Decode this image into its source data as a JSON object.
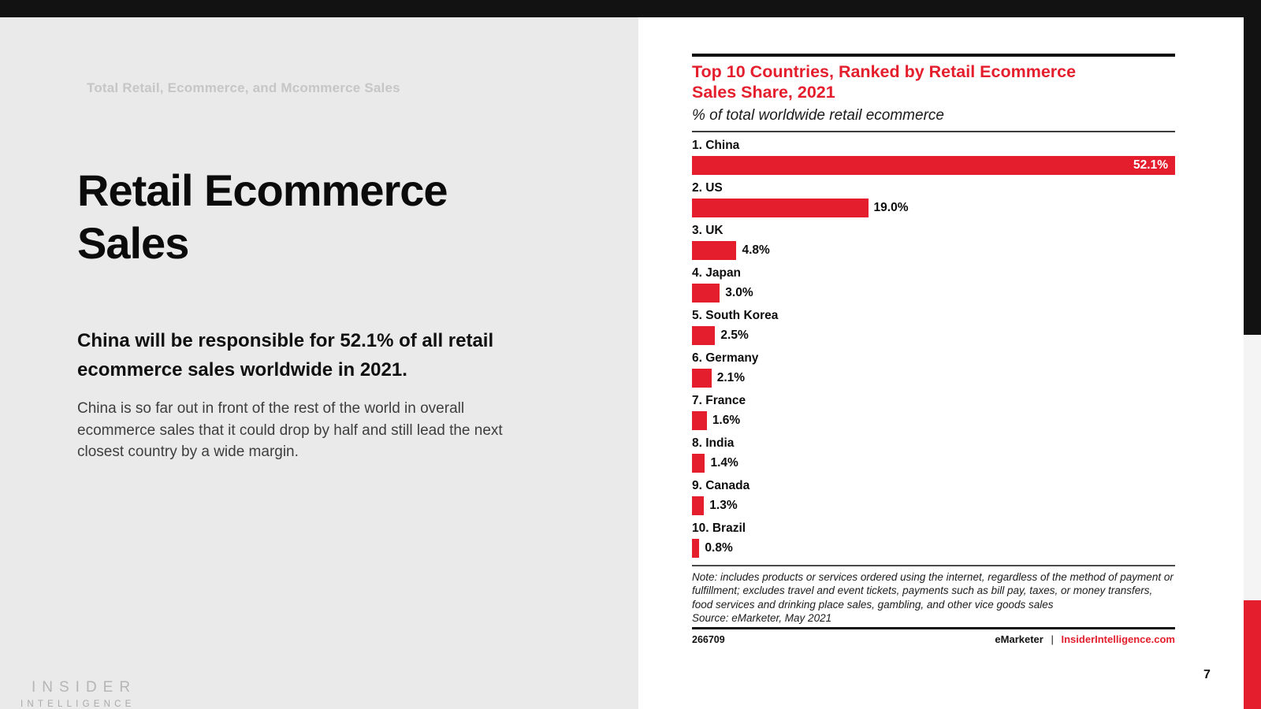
{
  "page": {
    "eyebrow": "Total Retail, Ecommerce, and Mcommerce Sales",
    "title": "Retail Ecommerce Sales",
    "highlight": "China will be responsible for 52.1% of all retail ecommerce sales worldwide in 2021.",
    "body": "China is so far out in front of the rest of the world in overall ecommerce sales that it could drop by half and still lead the next closest country by a wide margin.",
    "page_number": "7",
    "logo_line1": "INSIDER",
    "logo_line2": "INTELLIGENCE"
  },
  "chart": {
    "title_lines": [
      "Top 10 Countries, Ranked by Retail Ecommerce",
      "Sales Share, 2021"
    ],
    "subtitle": "% of total worldwide retail ecommerce",
    "note": "Note: includes products or services ordered using the internet, regardless of the method of payment or fulfillment; excludes travel and event tickets, payments such as bill pay, taxes, or money transfers, food services and drinking place sales, gambling, and other vice goods sales",
    "source": "Source: eMarketer, May 2021",
    "chart_id": "266709",
    "brand": "eMarketer",
    "brand_separator": "|",
    "brand_site": "InsiderIntelligence.com"
  },
  "chart_data": {
    "type": "bar",
    "orientation": "horizontal",
    "title": "Top 10 Countries, Ranked by Retail Ecommerce Sales Share, 2021",
    "subtitle": "% of total worldwide retail ecommerce",
    "xlabel": "",
    "ylabel": "",
    "axis": "none",
    "grid": false,
    "legend": "none",
    "scale_max": 52.1,
    "categories": [
      "1. China",
      "2. US",
      "3. UK",
      "4. Japan",
      "5. South Korea",
      "6. Germany",
      "7. France",
      "8. India",
      "9. Canada",
      "10. Brazil"
    ],
    "values": [
      52.1,
      19.0,
      4.8,
      3.0,
      2.5,
      2.1,
      1.6,
      1.4,
      1.3,
      0.8
    ],
    "labels": [
      "52.1%",
      "19.0%",
      "4.8%",
      "3.0%",
      "2.5%",
      "2.1%",
      "1.6%",
      "1.4%",
      "1.3%",
      "0.8%"
    ],
    "value_label_style": "first bar labeled inside in white; all others labeled outside in black",
    "bar_color": "#e41e2c"
  },
  "colors": {
    "accent_red": "#e41e2c",
    "ink_black": "#121212",
    "left_panel_gray": "#eaeaea",
    "edge_gray": "#f4f4f5",
    "eyebrow_gray": "#c6c6c6"
  }
}
